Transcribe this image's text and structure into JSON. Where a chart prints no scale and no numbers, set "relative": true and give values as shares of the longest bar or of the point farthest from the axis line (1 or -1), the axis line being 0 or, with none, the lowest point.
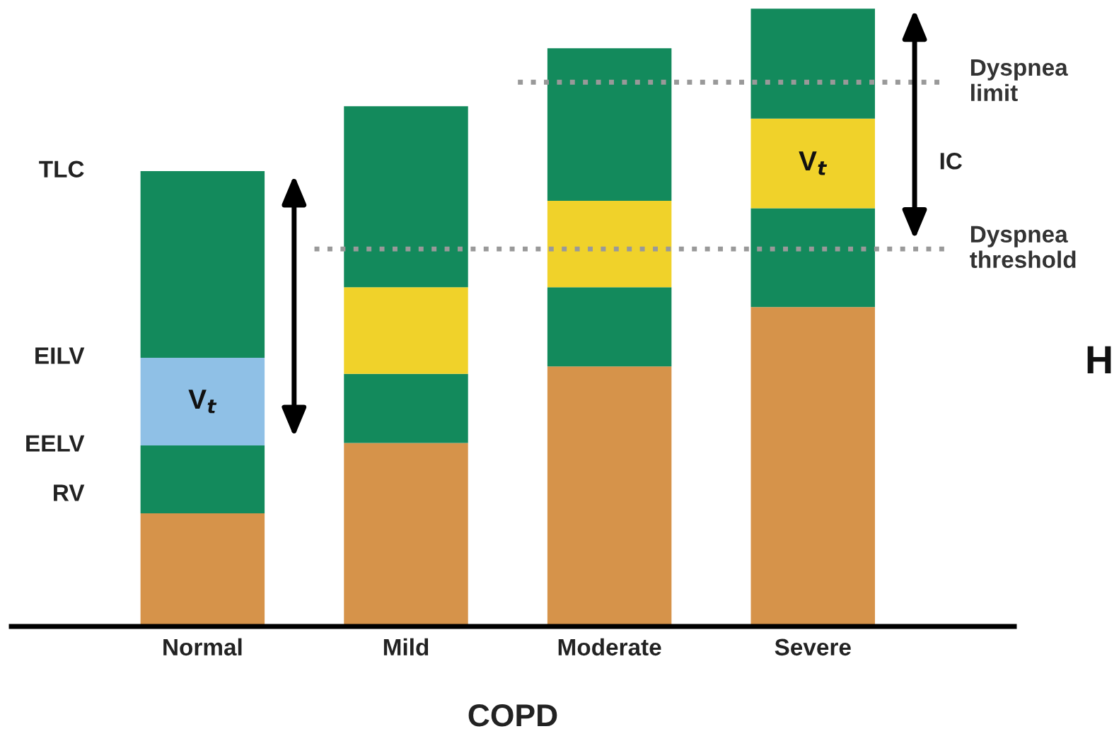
{
  "chart_data": {
    "type": "bar",
    "stacked": true,
    "relative": true,
    "xlabel": "COPD",
    "categories": [
      "Normal",
      "Mild",
      "Moderate",
      "Severe"
    ],
    "series": [
      {
        "color": "#d6934a",
        "values": [
          0.183,
          0.297,
          0.421,
          0.517
        ]
      },
      {
        "color": "#138a5c",
        "values": [
          0.11,
          0.112,
          0.128,
          0.16
        ]
      },
      {
        "colors": [
          "#8fc0e6",
          "#f0d22a",
          "#f0d22a",
          "#f0d22a"
        ],
        "values": [
          0.142,
          0.14,
          0.14,
          0.145
        ]
      },
      {
        "color": "#138a5c",
        "values": [
          0.302,
          0.293,
          0.247,
          0.178
        ]
      }
    ],
    "ref_lines": [
      {
        "axis": "y",
        "value": 0.881,
        "label": "Dyspnea\nlimit",
        "color": "#999999",
        "line_style": "dotted"
      },
      {
        "axis": "y",
        "value": 0.611,
        "label": "Dyspnea\nthreshold",
        "color": "#999999",
        "line_style": "dotted"
      }
    ],
    "annotations": [
      "TLC",
      "EILV",
      "EELV",
      "RV",
      "V$_{t}$",
      "V$_{t}$",
      "IC",
      "H"
    ],
    "grid": false,
    "legend": false,
    "tick_labels": "x"
  }
}
